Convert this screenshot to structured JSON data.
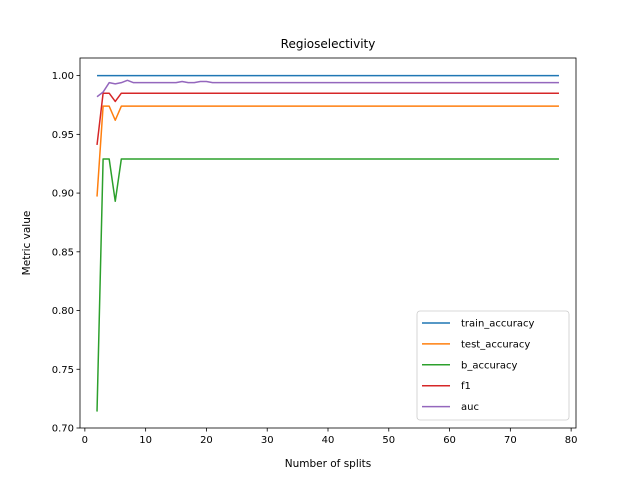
{
  "chart_data": {
    "type": "line",
    "title": "Regioselectivity",
    "xlabel": "Number of splits",
    "ylabel": "Metric value",
    "xlim": [
      -0.8,
      80.8
    ],
    "ylim": [
      0.7,
      1.015
    ],
    "xticks": [
      0,
      10,
      20,
      30,
      40,
      50,
      60,
      70,
      80
    ],
    "yticks": [
      0.7,
      0.75,
      0.8,
      0.85,
      0.9,
      0.95,
      1.0
    ],
    "ytick_labels": [
      "0.70",
      "0.75",
      "0.80",
      "0.85",
      "0.90",
      "0.95",
      "1.00"
    ],
    "grid": false,
    "legend_position": "lower-right",
    "x": [
      2,
      3,
      4,
      5,
      6,
      7,
      8,
      9,
      10,
      11,
      12,
      13,
      14,
      15,
      16,
      17,
      18,
      19,
      20,
      21,
      22,
      23,
      24,
      25,
      26,
      27,
      28,
      29,
      30,
      31,
      32,
      33,
      34,
      35,
      36,
      37,
      38,
      39,
      40,
      41,
      42,
      43,
      44,
      45,
      46,
      47,
      48,
      49,
      50,
      51,
      52,
      53,
      54,
      55,
      56,
      57,
      58,
      59,
      60,
      61,
      62,
      63,
      64,
      65,
      66,
      67,
      68,
      69,
      70,
      71,
      72,
      73,
      74,
      75,
      76,
      77,
      78
    ],
    "series": [
      {
        "name": "train_accuracy",
        "color": "#1f77b4",
        "values": [
          1.0,
          1.0,
          1.0,
          1.0,
          1.0,
          1.0,
          1.0,
          1.0,
          1.0,
          1.0,
          1.0,
          1.0,
          1.0,
          1.0,
          1.0,
          1.0,
          1.0,
          1.0,
          1.0,
          1.0,
          1.0,
          1.0,
          1.0,
          1.0,
          1.0,
          1.0,
          1.0,
          1.0,
          1.0,
          1.0,
          1.0,
          1.0,
          1.0,
          1.0,
          1.0,
          1.0,
          1.0,
          1.0,
          1.0,
          1.0,
          1.0,
          1.0,
          1.0,
          1.0,
          1.0,
          1.0,
          1.0,
          1.0,
          1.0,
          1.0,
          1.0,
          1.0,
          1.0,
          1.0,
          1.0,
          1.0,
          1.0,
          1.0,
          1.0,
          1.0,
          1.0,
          1.0,
          1.0,
          1.0,
          1.0,
          1.0,
          1.0,
          1.0,
          1.0,
          1.0,
          1.0,
          1.0,
          1.0,
          1.0,
          1.0,
          1.0,
          1.0
        ]
      },
      {
        "name": "test_accuracy",
        "color": "#ff7f0e",
        "values": [
          0.897,
          0.974,
          0.974,
          0.962,
          0.974,
          0.974,
          0.974,
          0.974,
          0.974,
          0.974,
          0.974,
          0.974,
          0.974,
          0.974,
          0.974,
          0.974,
          0.974,
          0.974,
          0.974,
          0.974,
          0.974,
          0.974,
          0.974,
          0.974,
          0.974,
          0.974,
          0.974,
          0.974,
          0.974,
          0.974,
          0.974,
          0.974,
          0.974,
          0.974,
          0.974,
          0.974,
          0.974,
          0.974,
          0.974,
          0.974,
          0.974,
          0.974,
          0.974,
          0.974,
          0.974,
          0.974,
          0.974,
          0.974,
          0.974,
          0.974,
          0.974,
          0.974,
          0.974,
          0.974,
          0.974,
          0.974,
          0.974,
          0.974,
          0.974,
          0.974,
          0.974,
          0.974,
          0.974,
          0.974,
          0.974,
          0.974,
          0.974,
          0.974,
          0.974,
          0.974,
          0.974,
          0.974,
          0.974,
          0.974,
          0.974,
          0.974,
          0.974
        ]
      },
      {
        "name": "b_accuracy",
        "color": "#2ca02c",
        "values": [
          0.714,
          0.929,
          0.929,
          0.893,
          0.929,
          0.929,
          0.929,
          0.929,
          0.929,
          0.929,
          0.929,
          0.929,
          0.929,
          0.929,
          0.929,
          0.929,
          0.929,
          0.929,
          0.929,
          0.929,
          0.929,
          0.929,
          0.929,
          0.929,
          0.929,
          0.929,
          0.929,
          0.929,
          0.929,
          0.929,
          0.929,
          0.929,
          0.929,
          0.929,
          0.929,
          0.929,
          0.929,
          0.929,
          0.929,
          0.929,
          0.929,
          0.929,
          0.929,
          0.929,
          0.929,
          0.929,
          0.929,
          0.929,
          0.929,
          0.929,
          0.929,
          0.929,
          0.929,
          0.929,
          0.929,
          0.929,
          0.929,
          0.929,
          0.929,
          0.929,
          0.929,
          0.929,
          0.929,
          0.929,
          0.929,
          0.929,
          0.929,
          0.929,
          0.929,
          0.929,
          0.929,
          0.929,
          0.929,
          0.929,
          0.929,
          0.929,
          0.929
        ]
      },
      {
        "name": "f1",
        "color": "#d62728",
        "values": [
          0.941,
          0.985,
          0.985,
          0.978,
          0.985,
          0.985,
          0.985,
          0.985,
          0.985,
          0.985,
          0.985,
          0.985,
          0.985,
          0.985,
          0.985,
          0.985,
          0.985,
          0.985,
          0.985,
          0.985,
          0.985,
          0.985,
          0.985,
          0.985,
          0.985,
          0.985,
          0.985,
          0.985,
          0.985,
          0.985,
          0.985,
          0.985,
          0.985,
          0.985,
          0.985,
          0.985,
          0.985,
          0.985,
          0.985,
          0.985,
          0.985,
          0.985,
          0.985,
          0.985,
          0.985,
          0.985,
          0.985,
          0.985,
          0.985,
          0.985,
          0.985,
          0.985,
          0.985,
          0.985,
          0.985,
          0.985,
          0.985,
          0.985,
          0.985,
          0.985,
          0.985,
          0.985,
          0.985,
          0.985,
          0.985,
          0.985,
          0.985,
          0.985,
          0.985,
          0.985,
          0.985,
          0.985,
          0.985,
          0.985,
          0.985,
          0.985,
          0.985
        ]
      },
      {
        "name": "auc",
        "color": "#9467bd",
        "values": [
          0.982,
          0.986,
          0.994,
          0.993,
          0.994,
          0.996,
          0.994,
          0.994,
          0.994,
          0.994,
          0.994,
          0.994,
          0.994,
          0.994,
          0.995,
          0.994,
          0.994,
          0.995,
          0.995,
          0.994,
          0.994,
          0.994,
          0.994,
          0.994,
          0.994,
          0.994,
          0.994,
          0.994,
          0.994,
          0.994,
          0.994,
          0.994,
          0.994,
          0.994,
          0.994,
          0.994,
          0.994,
          0.994,
          0.994,
          0.994,
          0.994,
          0.994,
          0.994,
          0.994,
          0.994,
          0.994,
          0.994,
          0.994,
          0.994,
          0.994,
          0.994,
          0.994,
          0.994,
          0.994,
          0.994,
          0.994,
          0.994,
          0.994,
          0.994,
          0.994,
          0.994,
          0.994,
          0.994,
          0.994,
          0.994,
          0.994,
          0.994,
          0.994,
          0.994,
          0.994,
          0.994,
          0.994,
          0.994,
          0.994,
          0.994,
          0.994,
          0.994
        ]
      }
    ]
  }
}
